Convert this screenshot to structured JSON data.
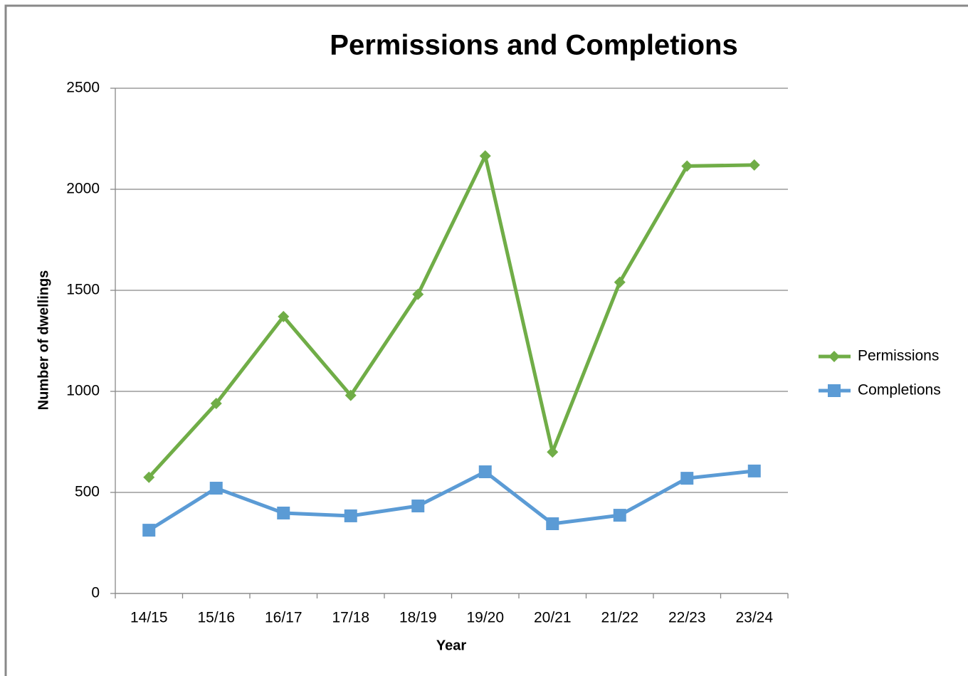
{
  "chart_data": {
    "type": "line",
    "title": "Permissions and Completions",
    "x_label": "Year",
    "y_label": "Number of dwellings",
    "categories": [
      "14/15",
      "15/16",
      "16/17",
      "17/18",
      "18/19",
      "19/20",
      "20/21",
      "21/22",
      "22/23",
      "23/24"
    ],
    "series": [
      {
        "name": "Permissions",
        "color": "#70ad47",
        "marker": "diamond",
        "values": [
          575,
          940,
          1370,
          980,
          1480,
          2165,
          700,
          1540,
          2115,
          2120
        ]
      },
      {
        "name": "Completions",
        "color": "#5b9bd5",
        "marker": "square",
        "values": [
          313,
          521,
          398,
          384,
          433,
          602,
          345,
          387,
          570,
          606
        ]
      }
    ],
    "ylim": [
      0,
      2500
    ],
    "yticks": [
      0,
      500,
      1000,
      1500,
      2000,
      2500
    ],
    "grid": true,
    "legend": "right"
  }
}
